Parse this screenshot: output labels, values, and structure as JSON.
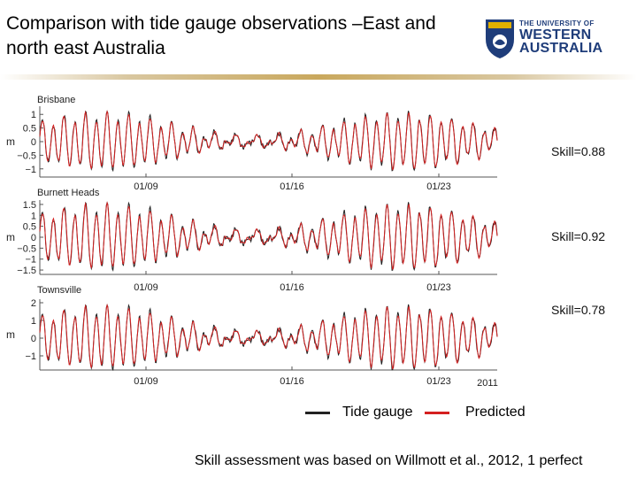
{
  "slide": {
    "title": "Comparison with tide gauge observations –East and north east Australia",
    "footnote": "Skill assessment was based on Willmott et al., 2012, 1 perfect"
  },
  "logo": {
    "line1": "THE UNIVERSITY OF",
    "line2": "WESTERN",
    "line3": "AUSTRALIA",
    "brand_color": "#1f3d7a",
    "crest_color": "#e0b000"
  },
  "legend": {
    "observed_label": "Tide gauge",
    "predicted_label": "Predicted",
    "observed_color": "#222222",
    "predicted_color": "#d42020"
  },
  "chart_data": [
    {
      "type": "line",
      "title": "Brisbane",
      "ylabel": "m",
      "ylim": [
        -1.3,
        1.3
      ],
      "yticks": [
        "1",
        "0.5",
        "0",
        "−0.5",
        "−1"
      ],
      "ytick_values": [
        1,
        0.5,
        0,
        -0.5,
        -1
      ],
      "xticks": [
        "01/09",
        "01/16",
        "01/23"
      ],
      "xlabel_extra": "",
      "skill": "Skill=0.88",
      "amplitude": 0.95,
      "series": [
        {
          "name": "Tide gauge"
        },
        {
          "name": "Predicted"
        }
      ]
    },
    {
      "type": "line",
      "title": "Burnett Heads",
      "ylabel": "m",
      "ylim": [
        -1.7,
        1.7
      ],
      "yticks": [
        "1.5",
        "1",
        "0.5",
        "0",
        "−0.5",
        "−1",
        "−1.5"
      ],
      "ytick_values": [
        1.5,
        1,
        0.5,
        0,
        -0.5,
        -1,
        -1.5
      ],
      "xticks": [
        "01/09",
        "01/16",
        "01/23"
      ],
      "xlabel_extra": "",
      "skill": "Skill=0.92",
      "amplitude": 1.35,
      "series": [
        {
          "name": "Tide gauge"
        },
        {
          "name": "Predicted"
        }
      ]
    },
    {
      "type": "line",
      "title": "Townsville",
      "ylabel": "m",
      "ylim": [
        -1.8,
        2.2
      ],
      "yticks": [
        "2",
        "1",
        "0",
        "−1"
      ],
      "ytick_values": [
        2,
        1,
        0,
        -1
      ],
      "xticks": [
        "01/09",
        "01/16",
        "01/23"
      ],
      "xlabel_extra": "2011",
      "skill": "Skill=0.78",
      "amplitude": 1.6,
      "series": [
        {
          "name": "Tide gauge"
        },
        {
          "name": "Predicted"
        }
      ]
    }
  ]
}
